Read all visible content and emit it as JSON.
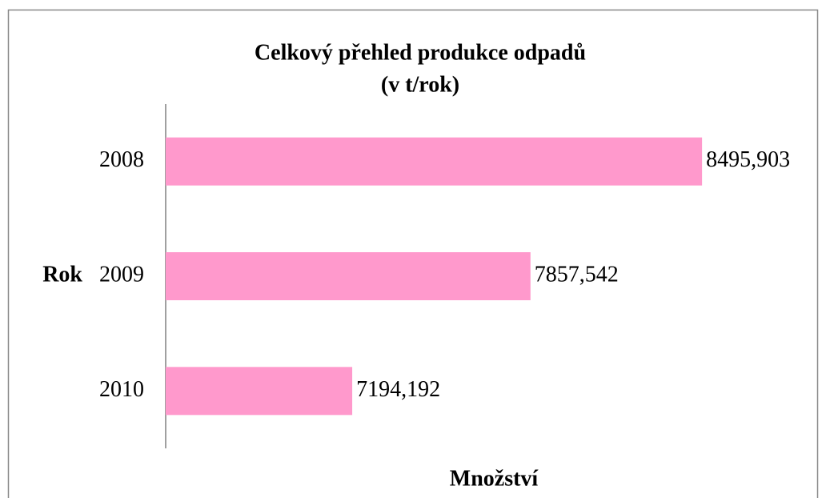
{
  "chart_data": {
    "type": "barh",
    "title": "Celkový přehled produkce odpadů",
    "subtitle": "(v t/rok)",
    "y_label": "Rok",
    "x_label": "Množství",
    "categories": [
      "2008",
      "2009",
      "2010"
    ],
    "values": [
      8495.903,
      7857.542,
      7194.192
    ],
    "value_labels": [
      "8495,903",
      "7857,542",
      "7194,192"
    ],
    "color": "#ff99cc",
    "xlim": [
      6500,
      8500
    ]
  }
}
